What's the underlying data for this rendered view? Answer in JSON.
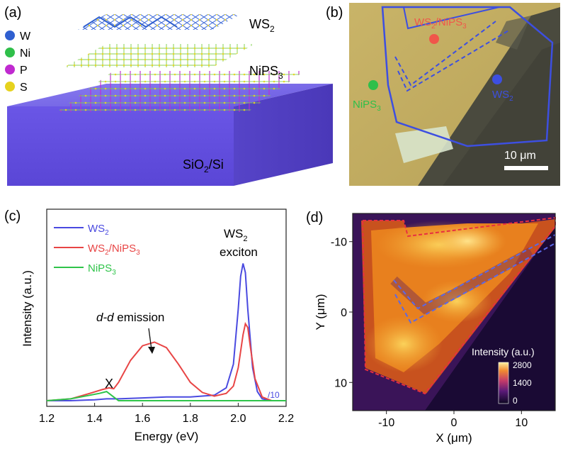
{
  "panels": {
    "a": {
      "label": "(a)",
      "legend": [
        {
          "text": "W",
          "color": "#2f5fd0"
        },
        {
          "text": "Ni",
          "color": "#2fbf4a"
        },
        {
          "text": "P",
          "color": "#c02ad0"
        },
        {
          "text": "S",
          "color": "#e6d21e"
        }
      ],
      "layer_labels": {
        "top": "WS",
        "top_sub": "2",
        "middle": "NiPS",
        "middle_sub": "3",
        "substrate": "SiO",
        "substrate_sub": "2",
        "substrate_tail": "/Si"
      }
    },
    "b": {
      "label": "(b)",
      "markers": [
        {
          "text": "WS",
          "sub": "2",
          "tail": "/NiPS",
          "tail_sub": "3",
          "color": "#f0564a"
        },
        {
          "text": "NiPS",
          "sub": "3",
          "tail": "",
          "tail_sub": "",
          "color": "#2fbf4a"
        },
        {
          "text": "WS",
          "sub": "2",
          "tail": "",
          "tail_sub": "",
          "color": "#3d4fe0"
        }
      ],
      "scale_bar": "10 μm"
    },
    "c": {
      "label": "(c)",
      "annotations": {
        "exciton_line1": "WS",
        "exciton_sub": "2",
        "exciton_line2": "exciton",
        "dd_italic": "d-d",
        "dd_rest": " emission",
        "x_peak": "X",
        "scale_note": "/10"
      }
    },
    "d": {
      "label": "(d)",
      "colorbar_title": "Intensity (a.u.)",
      "colorbar_ticks": [
        "2800",
        "1400",
        "0"
      ]
    }
  },
  "chart_data": [
    {
      "type": "line",
      "panel": "c",
      "xlabel": "Energy (eV)",
      "ylabel": "Intensity (a.u.)",
      "xlim": [
        1.2,
        2.2
      ],
      "ylim": [
        0,
        1.0
      ],
      "x_ticks": [
        "1.2",
        "1.4",
        "1.6",
        "1.8",
        "2.0",
        "2.2"
      ],
      "legend_position": "top-left",
      "series": [
        {
          "name": "WS",
          "name_sub": "2",
          "color": "#4a4ae0",
          "x": [
            1.2,
            1.3,
            1.4,
            1.45,
            1.5,
            1.6,
            1.7,
            1.8,
            1.9,
            1.95,
            1.98,
            2.0,
            2.01,
            2.02,
            2.03,
            2.04,
            2.06,
            2.08,
            2.1,
            2.14,
            2.2
          ],
          "y": [
            0.0,
            0.0,
            0.005,
            0.01,
            0.01,
            0.015,
            0.02,
            0.02,
            0.03,
            0.07,
            0.2,
            0.5,
            0.68,
            0.75,
            0.7,
            0.5,
            0.18,
            0.05,
            0.01,
            0.0,
            0.0
          ]
        },
        {
          "name": "WS",
          "name_sub": "2",
          "name_tail": "/NiPS",
          "name_tail_sub": "3",
          "color": "#e84545",
          "x": [
            1.2,
            1.3,
            1.38,
            1.43,
            1.46,
            1.48,
            1.5,
            1.55,
            1.6,
            1.65,
            1.7,
            1.75,
            1.8,
            1.85,
            1.9,
            1.95,
            1.98,
            2.0,
            2.02,
            2.03,
            2.04,
            2.05,
            2.07,
            2.1,
            2.14,
            2.2
          ],
          "y": [
            0.0,
            0.01,
            0.04,
            0.06,
            0.07,
            0.065,
            0.1,
            0.22,
            0.3,
            0.32,
            0.29,
            0.2,
            0.1,
            0.045,
            0.025,
            0.04,
            0.08,
            0.18,
            0.36,
            0.42,
            0.4,
            0.3,
            0.12,
            0.02,
            0.0,
            0.0
          ]
        },
        {
          "name": "NiPS",
          "name_sub": "3",
          "color": "#2fc44a",
          "x": [
            1.2,
            1.3,
            1.38,
            1.42,
            1.45,
            1.47,
            1.5,
            1.6,
            1.8,
            2.0,
            2.2
          ],
          "y": [
            0.0,
            0.01,
            0.03,
            0.04,
            0.05,
            0.03,
            0.0,
            0.0,
            0.0,
            0.0,
            0.0
          ]
        }
      ]
    },
    {
      "type": "heatmap",
      "panel": "d",
      "xlabel": "X (μm)",
      "ylabel": "Y (μm)",
      "xlim": [
        -15,
        15
      ],
      "ylim": [
        -14,
        14
      ],
      "x_ticks": [
        "-10",
        "0",
        "10"
      ],
      "y_ticks": [
        "-10",
        "0",
        "10"
      ],
      "colorbar_range": [
        0,
        2800
      ]
    }
  ]
}
